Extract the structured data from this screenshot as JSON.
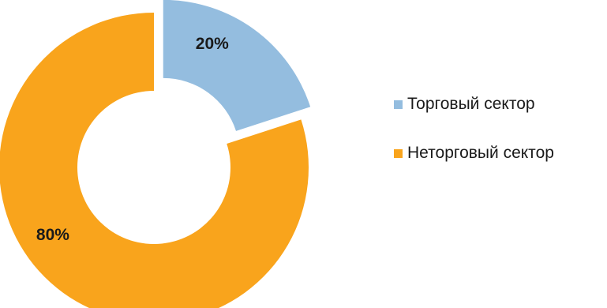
{
  "chart_data": {
    "type": "pie",
    "style": "donut",
    "title": "",
    "legend_position": "right",
    "series": [
      {
        "categories": [
          "Торговый сектор",
          "Неторговый сектор"
        ],
        "values": [
          20,
          80
        ],
        "data_labels": [
          "20%",
          "80%"
        ],
        "colors": [
          "#94bddf",
          "#f9a41c"
        ],
        "exploded": [
          true,
          false
        ]
      }
    ]
  },
  "legend": {
    "items": [
      {
        "label": "Торговый сектор",
        "color": "#94bddf"
      },
      {
        "label": "Неторговый сектор",
        "color": "#f9a41c"
      }
    ]
  }
}
